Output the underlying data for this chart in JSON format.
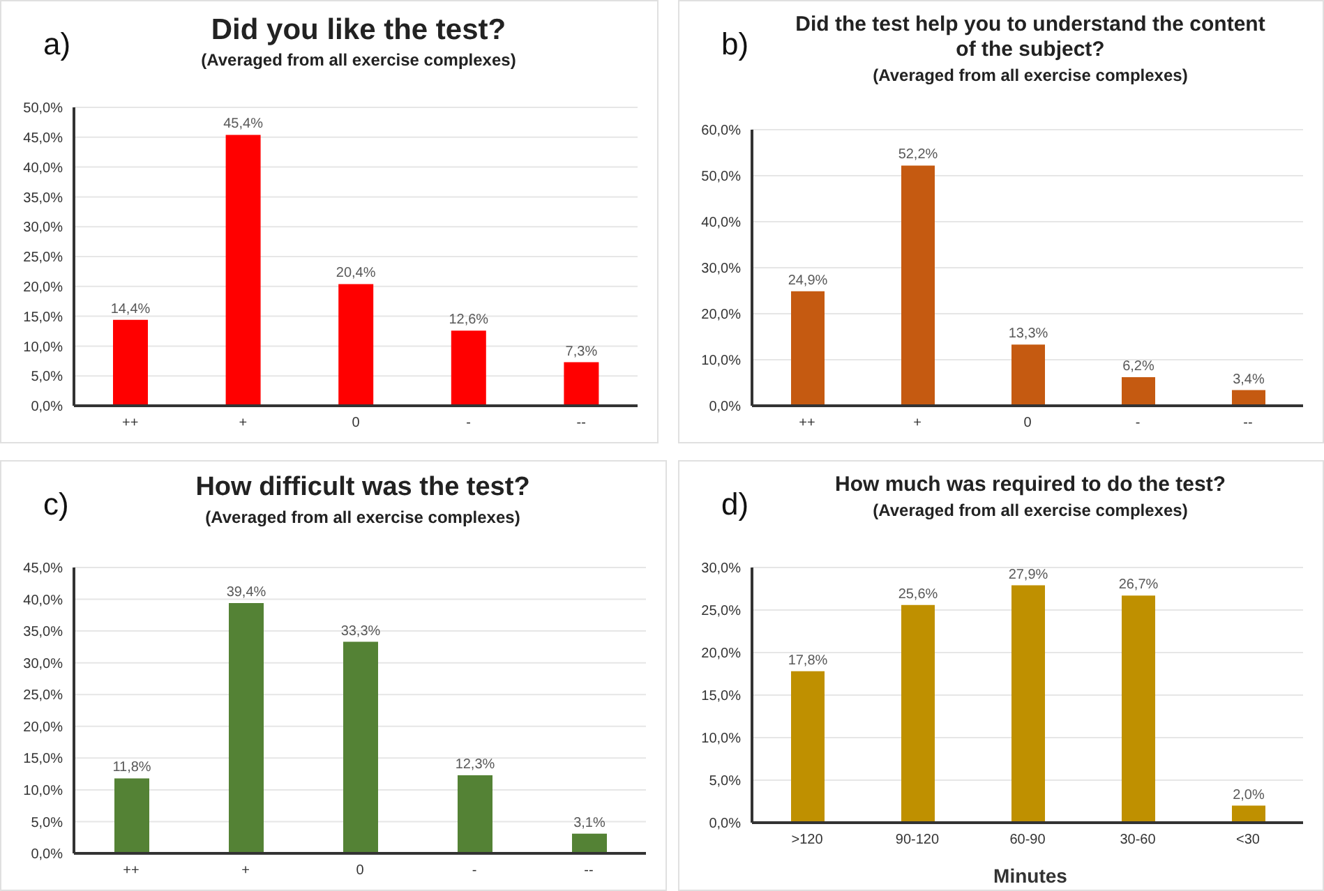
{
  "chart_data": [
    {
      "type": "bar",
      "title": "Did you like the test?",
      "subtitle": "(Averaged from all exercise complexes)",
      "annotations": [
        "a)"
      ],
      "categories": [
        "++",
        "+",
        "0",
        "-",
        "--"
      ],
      "values": [
        14.4,
        45.4,
        20.4,
        12.6,
        7.3
      ],
      "value_labels": [
        "14,4%",
        "45,4%",
        "20,4%",
        "12,6%",
        "7,3%"
      ],
      "color": "#ff0000",
      "ylim": [
        0,
        50
      ],
      "yticks": [
        {
          "value": 0,
          "label": "0,0%"
        },
        {
          "value": 5,
          "label": "5,0%"
        },
        {
          "value": 10,
          "label": "10,0%"
        },
        {
          "value": 15,
          "label": "15,0%"
        },
        {
          "value": 20,
          "label": "20,0%"
        },
        {
          "value": 25,
          "label": "25,0%"
        },
        {
          "value": 30,
          "label": "30,0%"
        },
        {
          "value": 35,
          "label": "35,0%"
        },
        {
          "value": 40,
          "label": "40,0%"
        },
        {
          "value": 45,
          "label": "45,0%"
        },
        {
          "value": 50,
          "label": "50,0%"
        }
      ],
      "grid": "y"
    },
    {
      "type": "bar",
      "title": "Did the test help you to understand the content of the subject?",
      "subtitle": "(Averaged from all exercise complexes)",
      "annotations": [
        "b)"
      ],
      "categories": [
        "++",
        "+",
        "0",
        "-",
        "--"
      ],
      "values": [
        24.9,
        52.2,
        13.3,
        6.2,
        3.4
      ],
      "value_labels": [
        "24,9%",
        "52,2%",
        "13,3%",
        "6,2%",
        "3,4%"
      ],
      "color": "#c55a11",
      "ylim": [
        0,
        60
      ],
      "yticks": [
        {
          "value": 0,
          "label": "0,0%"
        },
        {
          "value": 10,
          "label": "10,0%"
        },
        {
          "value": 20,
          "label": "20,0%"
        },
        {
          "value": 30,
          "label": "30,0%"
        },
        {
          "value": 40,
          "label": "40,0%"
        },
        {
          "value": 50,
          "label": "50,0%"
        },
        {
          "value": 60,
          "label": "60,0%"
        }
      ],
      "grid": "y"
    },
    {
      "type": "bar",
      "title": "How difficult was the test?",
      "subtitle": "(Averaged from all exercise complexes)",
      "annotations": [
        "c)"
      ],
      "categories": [
        "++",
        "+",
        "0",
        "-",
        "--"
      ],
      "values": [
        11.8,
        39.4,
        33.3,
        12.3,
        3.1
      ],
      "value_labels": [
        "11,8%",
        "39,4%",
        "33,3%",
        "12,3%",
        "3,1%"
      ],
      "color": "#548235",
      "ylim": [
        0,
        45
      ],
      "yticks": [
        {
          "value": 0,
          "label": "0,0%"
        },
        {
          "value": 5,
          "label": "5,0%"
        },
        {
          "value": 10,
          "label": "10,0%"
        },
        {
          "value": 15,
          "label": "15,0%"
        },
        {
          "value": 20,
          "label": "20,0%"
        },
        {
          "value": 25,
          "label": "25,0%"
        },
        {
          "value": 30,
          "label": "30,0%"
        },
        {
          "value": 35,
          "label": "35,0%"
        },
        {
          "value": 40,
          "label": "40,0%"
        },
        {
          "value": 45,
          "label": "45,0%"
        }
      ],
      "grid": "y"
    },
    {
      "type": "bar",
      "title": "How much was required to do the test?",
      "subtitle": "(Averaged from all exercise complexes)",
      "annotations": [
        "d)"
      ],
      "xlabel": "Minutes",
      "categories": [
        ">120",
        "90-120",
        "60-90",
        "30-60",
        "<30"
      ],
      "values": [
        17.8,
        25.6,
        27.9,
        26.7,
        2.0
      ],
      "value_labels": [
        "17,8%",
        "25,6%",
        "27,9%",
        "26,7%",
        "2,0%"
      ],
      "color": "#bf9000",
      "ylim": [
        0,
        30
      ],
      "yticks": [
        {
          "value": 0,
          "label": "0,0%"
        },
        {
          "value": 5,
          "label": "5,0%"
        },
        {
          "value": 10,
          "label": "10,0%"
        },
        {
          "value": 15,
          "label": "15,0%"
        },
        {
          "value": 20,
          "label": "20,0%"
        },
        {
          "value": 25,
          "label": "25,0%"
        },
        {
          "value": 30,
          "label": "30,0%"
        }
      ],
      "grid": "y"
    }
  ]
}
